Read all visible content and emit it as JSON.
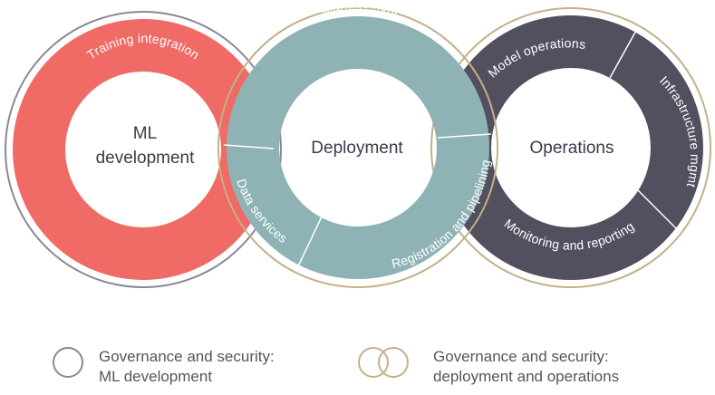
{
  "colors": {
    "ml_development": "#f06a66",
    "deployment": "#8fb3b5",
    "operations": "#524f5f",
    "governance_ml": "#8b8796",
    "governance_deploy_ops": "#c3b189",
    "center_text": "#3d3a4a",
    "ring_text": "#ffffff",
    "legend_text": "#56535e"
  },
  "rings": {
    "ml_development": {
      "center_line1": "ML",
      "center_line2": "development",
      "segments": [
        "Training integration"
      ]
    },
    "deployment": {
      "center": "Deployment",
      "segments": [
        "Management",
        "Data services",
        "Registration and pipelining"
      ]
    },
    "operations": {
      "center": "Operations",
      "segments": [
        "Model operations",
        "Infrastructure mgmt",
        "Monitoring and reporting"
      ]
    }
  },
  "legend": {
    "ml": {
      "icon": "single-circle-icon",
      "line1": "Governance and security:",
      "line2": "ML development"
    },
    "deploy_ops": {
      "icon": "double-circle-icon",
      "line1": "Governance and security:",
      "line2": "deployment and operations"
    }
  }
}
